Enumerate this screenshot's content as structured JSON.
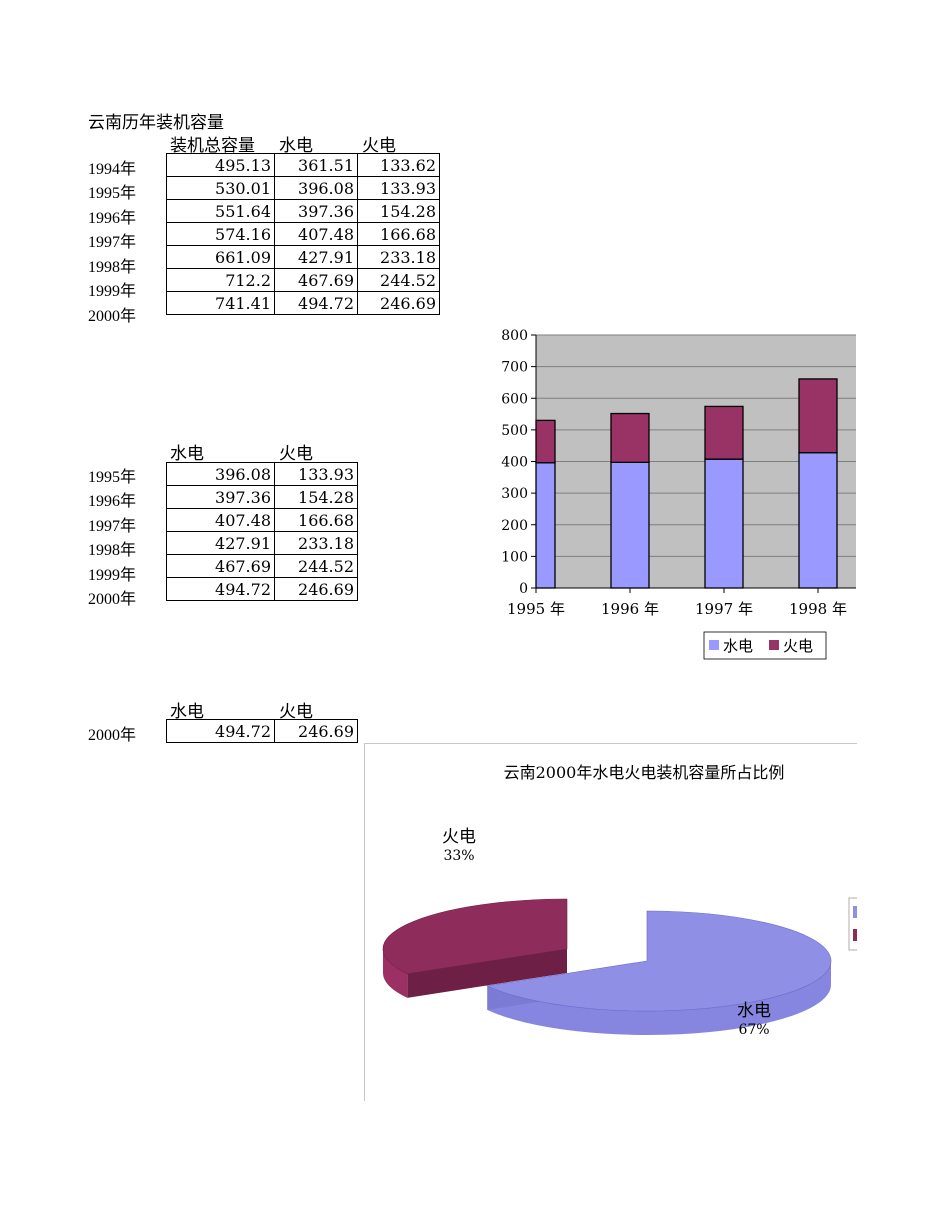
{
  "sheet_title": "云南历年装机容量",
  "table1": {
    "headers": [
      "装机总容量",
      "水电",
      "火电"
    ],
    "rows": [
      {
        "year": "1994年",
        "total": "495.13",
        "hydro": "361.51",
        "thermal": "133.62"
      },
      {
        "year": "1995年",
        "total": "530.01",
        "hydro": "396.08",
        "thermal": "133.93"
      },
      {
        "year": "1996年",
        "total": "551.64",
        "hydro": "397.36",
        "thermal": "154.28"
      },
      {
        "year": "1997年",
        "total": "574.16",
        "hydro": "407.48",
        "thermal": "166.68"
      },
      {
        "year": "1998年",
        "total": "661.09",
        "hydro": "427.91",
        "thermal": "233.18"
      },
      {
        "year": "1999年",
        "total": "712.2",
        "hydro": "467.69",
        "thermal": "244.52"
      },
      {
        "year": "2000年",
        "total": "741.41",
        "hydro": "494.72",
        "thermal": "246.69"
      }
    ]
  },
  "table2": {
    "headers": [
      "水电",
      "火电"
    ],
    "rows": [
      {
        "year": "1995年",
        "hydro": "396.08",
        "thermal": "133.93"
      },
      {
        "year": "1996年",
        "hydro": "397.36",
        "thermal": "154.28"
      },
      {
        "year": "1997年",
        "hydro": "407.48",
        "thermal": "166.68"
      },
      {
        "year": "1998年",
        "hydro": "427.91",
        "thermal": "233.18"
      },
      {
        "year": "1999年",
        "hydro": "467.69",
        "thermal": "244.52"
      },
      {
        "year": "2000年",
        "hydro": "494.72",
        "thermal": "246.69"
      }
    ]
  },
  "table3": {
    "headers": [
      "水电",
      "火电"
    ],
    "rows": [
      {
        "year": "2000年",
        "hydro": "494.72",
        "thermal": "246.69"
      }
    ]
  },
  "chart_data": [
    {
      "type": "bar",
      "stacked": true,
      "title": "",
      "categories": [
        "1995 年",
        "1996 年",
        "1997 年",
        "1998 年"
      ],
      "series": [
        {
          "name": "水电",
          "values": [
            396.08,
            397.36,
            407.48,
            427.91
          ],
          "color": "#9999ff"
        },
        {
          "name": "火电",
          "values": [
            133.93,
            154.28,
            166.68,
            233.18
          ],
          "color": "#993366"
        }
      ],
      "ylim": [
        0,
        800
      ],
      "yticks": [
        0,
        100,
        200,
        300,
        400,
        500,
        600,
        700,
        800
      ],
      "grid": true,
      "plot_background": "#c0c0c0",
      "legend": "bottom"
    },
    {
      "type": "pie",
      "title": "云南2000年水电火电装机容量所占比例",
      "labels": [
        "水电",
        "火电"
      ],
      "values": [
        494.72,
        246.69
      ],
      "percent_labels": [
        "67%",
        "33%"
      ],
      "colors": [
        "#8f8fe6",
        "#8e2d5c"
      ],
      "exploded": true,
      "three_d": true,
      "legend": "right"
    }
  ]
}
